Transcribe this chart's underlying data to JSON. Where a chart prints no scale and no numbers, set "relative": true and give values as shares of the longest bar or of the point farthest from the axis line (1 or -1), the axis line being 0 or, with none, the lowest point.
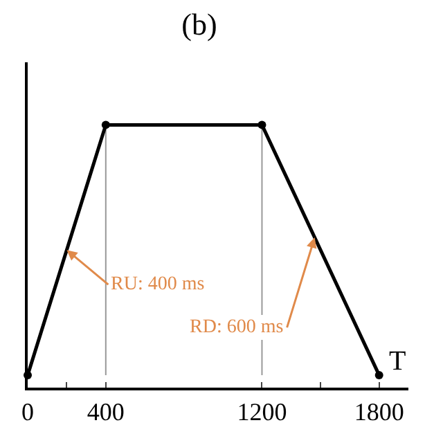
{
  "chart_data": {
    "type": "line",
    "title": "(b)",
    "xlabel": "T",
    "relative": true,
    "x": [
      0,
      400,
      1200,
      1800
    ],
    "series": [
      {
        "color": "#000000",
        "values": [
          0,
          1,
          1,
          0
        ]
      }
    ],
    "marker": "circle",
    "line_style": "solid",
    "grid": false,
    "xlim": [
      0,
      1950
    ],
    "xticks": [
      0,
      {
        "value": 200,
        "label": null
      },
      400,
      1200,
      {
        "value": 1500,
        "label": null
      },
      1800
    ],
    "ref_lines": [
      {
        "axis": "x",
        "value": 400,
        "color": "#999999"
      },
      {
        "axis": "x",
        "value": 1200,
        "color": "#999999"
      }
    ],
    "annotations": [
      {
        "text": "RU: 400 ms",
        "x": 200,
        "y": 0.5
      },
      {
        "text": "RD: 600 ms",
        "x": 1470,
        "y": 0.55
      }
    ]
  }
}
